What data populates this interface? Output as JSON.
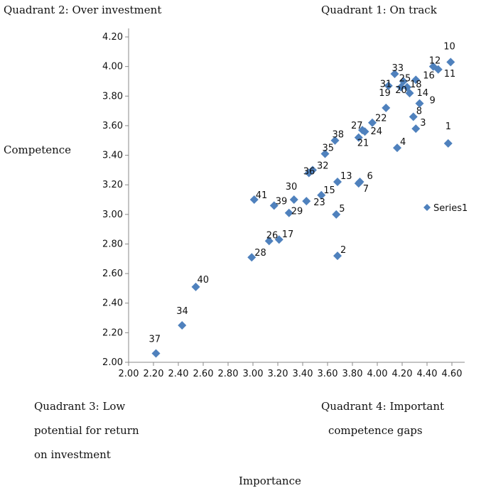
{
  "annotations": {
    "q2": "Quadrant 2:   Over investment",
    "q1": "Quadrant 1: On track",
    "ylabel": "Competence",
    "q3": [
      "Quadrant 3: Low",
      "potential for return",
      "on investment"
    ],
    "q4": [
      "Quadrant 4: Important",
      "competence gaps"
    ],
    "xlabel": "Importance"
  },
  "chart_data": {
    "type": "scatter",
    "xlabel": "Importance",
    "ylabel": "Competence",
    "xlim": [
      2.0,
      4.6
    ],
    "ylim": [
      2.0,
      4.2
    ],
    "xticks": [
      "2.00",
      "2.20",
      "2.40",
      "2.60",
      "2.80",
      "3.00",
      "3.20",
      "3.40",
      "3.60",
      "3.80",
      "4.00",
      "4.20",
      "4.40",
      "4.60"
    ],
    "yticks": [
      "2.00",
      "2.20",
      "2.40",
      "2.60",
      "2.80",
      "3.00",
      "3.20",
      "3.40",
      "3.60",
      "3.80",
      "4.00",
      "4.20"
    ],
    "grid": false,
    "legend": {
      "entries": [
        "Series1"
      ],
      "placement": "right"
    },
    "marker_color": "#4F81BD",
    "series": [
      {
        "name": "Series1",
        "points": [
          {
            "label": "1",
            "x": 4.57,
            "y": 3.48
          },
          {
            "label": "2",
            "x": 3.68,
            "y": 2.72
          },
          {
            "label": "3",
            "x": 4.31,
            "y": 3.58
          },
          {
            "label": "4",
            "x": 4.16,
            "y": 3.45
          },
          {
            "label": "5",
            "x": 3.67,
            "y": 3.0
          },
          {
            "label": "6",
            "x": 3.86,
            "y": 3.22
          },
          {
            "label": "7",
            "x": 3.85,
            "y": 3.21
          },
          {
            "label": "8",
            "x": 4.29,
            "y": 3.66
          },
          {
            "label": "9",
            "x": 4.34,
            "y": 3.75
          },
          {
            "label": "10",
            "x": 4.59,
            "y": 4.03
          },
          {
            "label": "11",
            "x": 4.49,
            "y": 3.98
          },
          {
            "label": "12",
            "x": 4.45,
            "y": 4.0
          },
          {
            "label": "13",
            "x": 3.68,
            "y": 3.22
          },
          {
            "label": "14",
            "x": 4.26,
            "y": 3.82
          },
          {
            "label": "15",
            "x": 3.55,
            "y": 3.13
          },
          {
            "label": "16",
            "x": 4.31,
            "y": 3.91
          },
          {
            "label": "17",
            "x": 3.21,
            "y": 2.83
          },
          {
            "label": "18",
            "x": 4.24,
            "y": 3.86
          },
          {
            "label": "19",
            "x": 4.07,
            "y": 3.72
          },
          {
            "label": "20",
            "x": 4.19,
            "y": 3.86
          },
          {
            "label": "21",
            "x": 3.85,
            "y": 3.52
          },
          {
            "label": "22",
            "x": 3.96,
            "y": 3.62
          },
          {
            "label": "23",
            "x": 3.43,
            "y": 3.09
          },
          {
            "label": "24",
            "x": 3.9,
            "y": 3.56
          },
          {
            "label": "25",
            "x": 4.21,
            "y": 3.9
          },
          {
            "label": "26",
            "x": 3.13,
            "y": 2.82
          },
          {
            "label": "27",
            "x": 3.88,
            "y": 3.57
          },
          {
            "label": "28",
            "x": 2.99,
            "y": 2.71
          },
          {
            "label": "29",
            "x": 3.29,
            "y": 3.01
          },
          {
            "label": "30",
            "x": 3.33,
            "y": 3.1
          },
          {
            "label": "31",
            "x": 4.09,
            "y": 3.87
          },
          {
            "label": "32",
            "x": 3.48,
            "y": 3.3
          },
          {
            "label": "33",
            "x": 4.14,
            "y": 3.95
          },
          {
            "label": "34",
            "x": 2.43,
            "y": 2.25
          },
          {
            "label": "35",
            "x": 3.58,
            "y": 3.41
          },
          {
            "label": "36",
            "x": 3.45,
            "y": 3.28
          },
          {
            "label": "37",
            "x": 2.22,
            "y": 2.06
          },
          {
            "label": "38",
            "x": 3.66,
            "y": 3.5
          },
          {
            "label": "39",
            "x": 3.17,
            "y": 3.06
          },
          {
            "label": "40",
            "x": 2.54,
            "y": 2.51
          },
          {
            "label": "41",
            "x": 3.01,
            "y": 3.1
          }
        ]
      }
    ]
  }
}
